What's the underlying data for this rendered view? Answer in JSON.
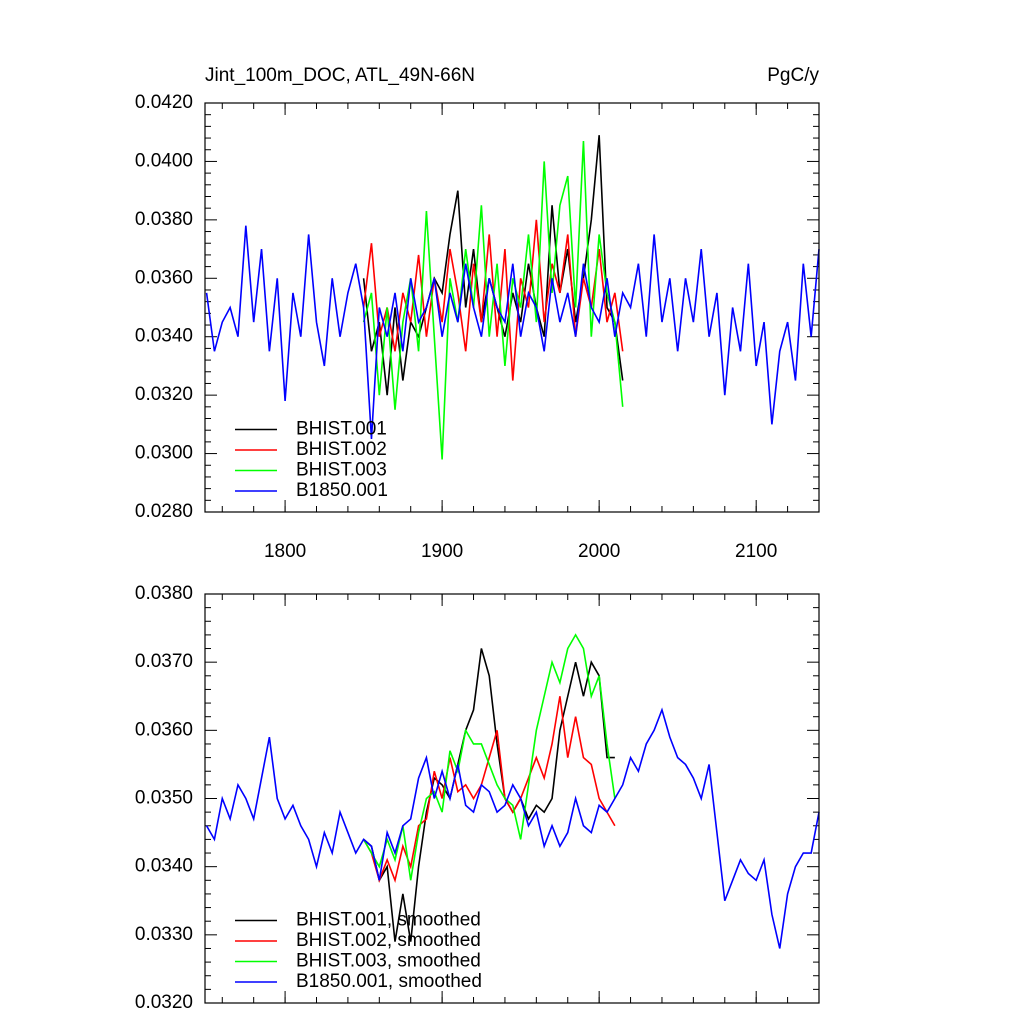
{
  "chart_data": [
    {
      "type": "line",
      "title": "Jint_100m_DOC, ATL_49N-66N",
      "units": "PgC/y",
      "x": [
        1750,
        1755,
        1760,
        1765,
        1770,
        1775,
        1780,
        1785,
        1790,
        1795,
        1800,
        1805,
        1810,
        1815,
        1820,
        1825,
        1830,
        1835,
        1840,
        1845,
        1850,
        1855,
        1860,
        1865,
        1870,
        1875,
        1880,
        1885,
        1890,
        1895,
        1900,
        1905,
        1910,
        1915,
        1920,
        1925,
        1930,
        1935,
        1940,
        1945,
        1950,
        1955,
        1960,
        1965,
        1970,
        1975,
        1980,
        1985,
        1990,
        1995,
        2000,
        2005,
        2010,
        2015,
        2020,
        2025,
        2030,
        2035,
        2040,
        2045,
        2050,
        2055,
        2060,
        2065,
        2070,
        2075,
        2080,
        2085,
        2090,
        2095,
        2100,
        2105,
        2110,
        2115,
        2120,
        2125,
        2130,
        2135,
        2140
      ],
      "xlim": [
        1749,
        2140
      ],
      "xticks": [
        1800,
        1900,
        2000,
        2100
      ],
      "ylim": [
        0.028,
        0.042
      ],
      "yticks": [
        {
          "value": 0.028,
          "label": "0.0280"
        },
        {
          "value": 0.03,
          "label": "0.0300"
        },
        {
          "value": 0.032,
          "label": "0.0320"
        },
        {
          "value": 0.034,
          "label": "0.0340"
        },
        {
          "value": 0.036,
          "label": "0.0360"
        },
        {
          "value": 0.038,
          "label": "0.0380"
        },
        {
          "value": 0.04,
          "label": "0.0400"
        },
        {
          "value": 0.042,
          "label": "0.0420"
        }
      ],
      "legend": "lower left",
      "series": [
        {
          "name": "BHIST.001",
          "color": "#000000",
          "values": [
            null,
            null,
            null,
            null,
            null,
            null,
            null,
            null,
            null,
            null,
            null,
            null,
            null,
            null,
            null,
            null,
            null,
            null,
            null,
            null,
            0.036,
            0.0335,
            0.0345,
            0.032,
            0.035,
            0.0325,
            0.0345,
            0.034,
            0.035,
            0.036,
            0.0355,
            0.0375,
            0.039,
            0.035,
            0.037,
            0.0345,
            0.036,
            0.035,
            0.034,
            0.0355,
            0.0345,
            0.0365,
            0.035,
            0.034,
            0.0385,
            0.0355,
            0.037,
            0.0345,
            0.036,
            0.038,
            0.0409,
            0.035,
            0.0345,
            0.0325,
            null,
            null,
            null,
            null,
            null,
            null,
            null,
            null,
            null,
            null,
            null,
            null,
            null,
            null,
            null,
            null,
            null,
            null,
            null,
            null,
            null,
            null,
            null,
            null,
            null
          ]
        },
        {
          "name": "BHIST.002",
          "color": "#ff0000",
          "values": [
            null,
            null,
            null,
            null,
            null,
            null,
            null,
            null,
            null,
            null,
            null,
            null,
            null,
            null,
            null,
            null,
            null,
            null,
            null,
            null,
            0.035,
            0.0372,
            0.034,
            0.035,
            0.0335,
            0.0355,
            0.0345,
            0.0368,
            0.034,
            0.036,
            0.0345,
            0.037,
            0.0355,
            0.0335,
            0.0365,
            0.0345,
            0.0375,
            0.034,
            0.037,
            0.0325,
            0.036,
            0.035,
            0.038,
            0.0345,
            0.0365,
            0.0355,
            0.0375,
            0.034,
            0.036,
            0.035,
            0.037,
            0.0345,
            0.0355,
            0.0335,
            null,
            null,
            null,
            null,
            null,
            null,
            null,
            null,
            null,
            null,
            null,
            null,
            null,
            null,
            null,
            null,
            null,
            null,
            null,
            null,
            null,
            null,
            null,
            null,
            null
          ]
        },
        {
          "name": "BHIST.003",
          "color": "#00ff00",
          "values": [
            null,
            null,
            null,
            null,
            null,
            null,
            null,
            null,
            null,
            null,
            null,
            null,
            null,
            null,
            null,
            null,
            null,
            null,
            null,
            null,
            0.0345,
            0.0355,
            0.032,
            0.035,
            0.0315,
            0.0345,
            0.036,
            0.0335,
            0.0383,
            0.034,
            0.0298,
            0.036,
            0.0345,
            0.037,
            0.035,
            0.0385,
            0.034,
            0.0365,
            0.033,
            0.036,
            0.035,
            0.0375,
            0.0345,
            0.04,
            0.0355,
            0.0385,
            0.0395,
            0.035,
            0.0407,
            0.034,
            0.0375,
            0.0355,
            0.0345,
            0.0316,
            null,
            null,
            null,
            null,
            null,
            null,
            null,
            null,
            null,
            null,
            null,
            null,
            null,
            null,
            null,
            null,
            null,
            null,
            null,
            null,
            null,
            null,
            null,
            null,
            null
          ]
        },
        {
          "name": "B1850.001",
          "color": "#0000ff",
          "values": [
            0.0355,
            0.0335,
            0.0345,
            0.035,
            0.034,
            0.0378,
            0.0345,
            0.037,
            0.0335,
            0.036,
            0.0318,
            0.0355,
            0.034,
            0.0375,
            0.0345,
            0.033,
            0.036,
            0.034,
            0.0355,
            0.0365,
            0.035,
            0.0305,
            0.035,
            0.034,
            0.0355,
            0.0335,
            0.036,
            0.0345,
            0.035,
            0.036,
            0.034,
            0.0355,
            0.0345,
            0.0365,
            0.035,
            0.034,
            0.036,
            0.035,
            0.0345,
            0.0365,
            0.034,
            0.0355,
            0.035,
            0.0335,
            0.036,
            0.0345,
            0.0355,
            0.034,
            0.0365,
            0.035,
            0.0345,
            0.036,
            0.034,
            0.0355,
            0.035,
            0.0365,
            0.034,
            0.0375,
            0.0345,
            0.036,
            0.0335,
            0.036,
            0.0345,
            0.037,
            0.034,
            0.0355,
            0.032,
            0.035,
            0.0335,
            0.0365,
            0.033,
            0.0345,
            0.031,
            0.0335,
            0.0345,
            0.0325,
            0.0365,
            0.034,
            0.037
          ]
        }
      ]
    },
    {
      "type": "line",
      "x": [
        1750,
        1755,
        1760,
        1765,
        1770,
        1775,
        1780,
        1785,
        1790,
        1795,
        1800,
        1805,
        1810,
        1815,
        1820,
        1825,
        1830,
        1835,
        1840,
        1845,
        1850,
        1855,
        1860,
        1865,
        1870,
        1875,
        1880,
        1885,
        1890,
        1895,
        1900,
        1905,
        1910,
        1915,
        1920,
        1925,
        1930,
        1935,
        1940,
        1945,
        1950,
        1955,
        1960,
        1965,
        1970,
        1975,
        1980,
        1985,
        1990,
        1995,
        2000,
        2005,
        2010,
        2015,
        2020,
        2025,
        2030,
        2035,
        2040,
        2045,
        2050,
        2055,
        2060,
        2065,
        2070,
        2075,
        2080,
        2085,
        2090,
        2095,
        2100,
        2105,
        2110,
        2115,
        2120,
        2125,
        2130,
        2135,
        2140
      ],
      "xlim": [
        1749,
        2140
      ],
      "xticks": [
        1800,
        1900,
        2000,
        2100
      ],
      "xtick_labels": false,
      "ylim": [
        0.032,
        0.038
      ],
      "yticks": [
        {
          "value": 0.032,
          "label": "0.0320"
        },
        {
          "value": 0.033,
          "label": "0.0330"
        },
        {
          "value": 0.034,
          "label": "0.0340"
        },
        {
          "value": 0.035,
          "label": "0.0350"
        },
        {
          "value": 0.036,
          "label": "0.0360"
        },
        {
          "value": 0.037,
          "label": "0.0370"
        },
        {
          "value": 0.038,
          "label": "0.0380"
        }
      ],
      "legend": "lower left",
      "series": [
        {
          "name": "BHIST.001, smoothed",
          "color": "#000000",
          "values": [
            null,
            null,
            null,
            null,
            null,
            null,
            null,
            null,
            null,
            null,
            null,
            null,
            null,
            null,
            null,
            null,
            null,
            null,
            null,
            null,
            0.0344,
            0.0343,
            0.0338,
            0.034,
            0.0329,
            0.0336,
            0.0329,
            0.034,
            0.0348,
            0.0353,
            0.0352,
            0.035,
            0.0355,
            0.036,
            0.0363,
            0.0372,
            0.0368,
            0.0358,
            0.035,
            0.0348,
            0.035,
            0.0347,
            0.0349,
            0.0348,
            0.035,
            0.036,
            0.0365,
            0.037,
            0.0365,
            0.037,
            0.0368,
            0.0356,
            0.0356,
            null,
            null,
            null,
            null,
            null,
            null,
            null,
            null,
            null,
            null,
            null,
            null,
            null,
            null,
            null,
            null,
            null,
            null,
            null,
            null,
            null,
            null,
            null,
            null,
            null,
            null
          ]
        },
        {
          "name": "BHIST.002, smoothed",
          "color": "#ff0000",
          "values": [
            null,
            null,
            null,
            null,
            null,
            null,
            null,
            null,
            null,
            null,
            null,
            null,
            null,
            null,
            null,
            null,
            null,
            null,
            null,
            null,
            0.0344,
            0.0342,
            0.0338,
            0.0341,
            0.0338,
            0.0343,
            0.034,
            0.0346,
            0.0347,
            0.0354,
            0.035,
            0.0356,
            0.0351,
            0.0352,
            0.035,
            0.0352,
            0.0356,
            0.036,
            0.035,
            0.0348,
            0.035,
            0.0353,
            0.0356,
            0.0353,
            0.0358,
            0.0365,
            0.0356,
            0.0362,
            0.0356,
            0.0355,
            0.035,
            0.0348,
            0.0346,
            null,
            null,
            null,
            null,
            null,
            null,
            null,
            null,
            null,
            null,
            null,
            null,
            null,
            null,
            null,
            null,
            null,
            null,
            null,
            null,
            null,
            null,
            null,
            null,
            null,
            null
          ]
        },
        {
          "name": "BHIST.003, smoothed",
          "color": "#00ff00",
          "values": [
            null,
            null,
            null,
            null,
            null,
            null,
            null,
            null,
            null,
            null,
            null,
            null,
            null,
            null,
            null,
            null,
            null,
            null,
            null,
            null,
            0.0344,
            0.0342,
            0.034,
            0.0344,
            0.0341,
            0.0346,
            0.0338,
            0.0345,
            0.035,
            0.0351,
            0.0348,
            0.0357,
            0.0354,
            0.036,
            0.0358,
            0.0358,
            0.0355,
            0.0352,
            0.035,
            0.0349,
            0.0344,
            0.0352,
            0.036,
            0.0365,
            0.037,
            0.0367,
            0.0372,
            0.0374,
            0.0372,
            0.0365,
            0.0368,
            0.0358,
            0.035,
            null,
            null,
            null,
            null,
            null,
            null,
            null,
            null,
            null,
            null,
            null,
            null,
            null,
            null,
            null,
            null,
            null,
            null,
            null,
            null,
            null,
            null,
            null,
            null,
            null,
            null
          ]
        },
        {
          "name": "B1850.001, smoothed",
          "color": "#0000ff",
          "values": [
            0.0346,
            0.0344,
            0.035,
            0.0347,
            0.0352,
            0.035,
            0.0347,
            0.0353,
            0.0359,
            0.035,
            0.0347,
            0.0349,
            0.0346,
            0.0344,
            0.034,
            0.0345,
            0.0342,
            0.0348,
            0.0345,
            0.0342,
            0.0344,
            0.0343,
            0.0338,
            0.0345,
            0.0342,
            0.0346,
            0.0347,
            0.0353,
            0.0356,
            0.035,
            0.0354,
            0.035,
            0.0355,
            0.0349,
            0.0348,
            0.0352,
            0.0351,
            0.0348,
            0.0349,
            0.0352,
            0.035,
            0.0346,
            0.0348,
            0.0343,
            0.0346,
            0.0343,
            0.0345,
            0.035,
            0.0346,
            0.0345,
            0.0349,
            0.0348,
            0.035,
            0.0352,
            0.0356,
            0.0354,
            0.0358,
            0.036,
            0.0363,
            0.0359,
            0.0356,
            0.0355,
            0.0353,
            0.035,
            0.0355,
            0.0345,
            0.0335,
            0.0338,
            0.0341,
            0.0339,
            0.0338,
            0.0341,
            0.0333,
            0.0328,
            0.0336,
            0.034,
            0.0342,
            0.0342,
            0.0348
          ]
        }
      ]
    }
  ]
}
